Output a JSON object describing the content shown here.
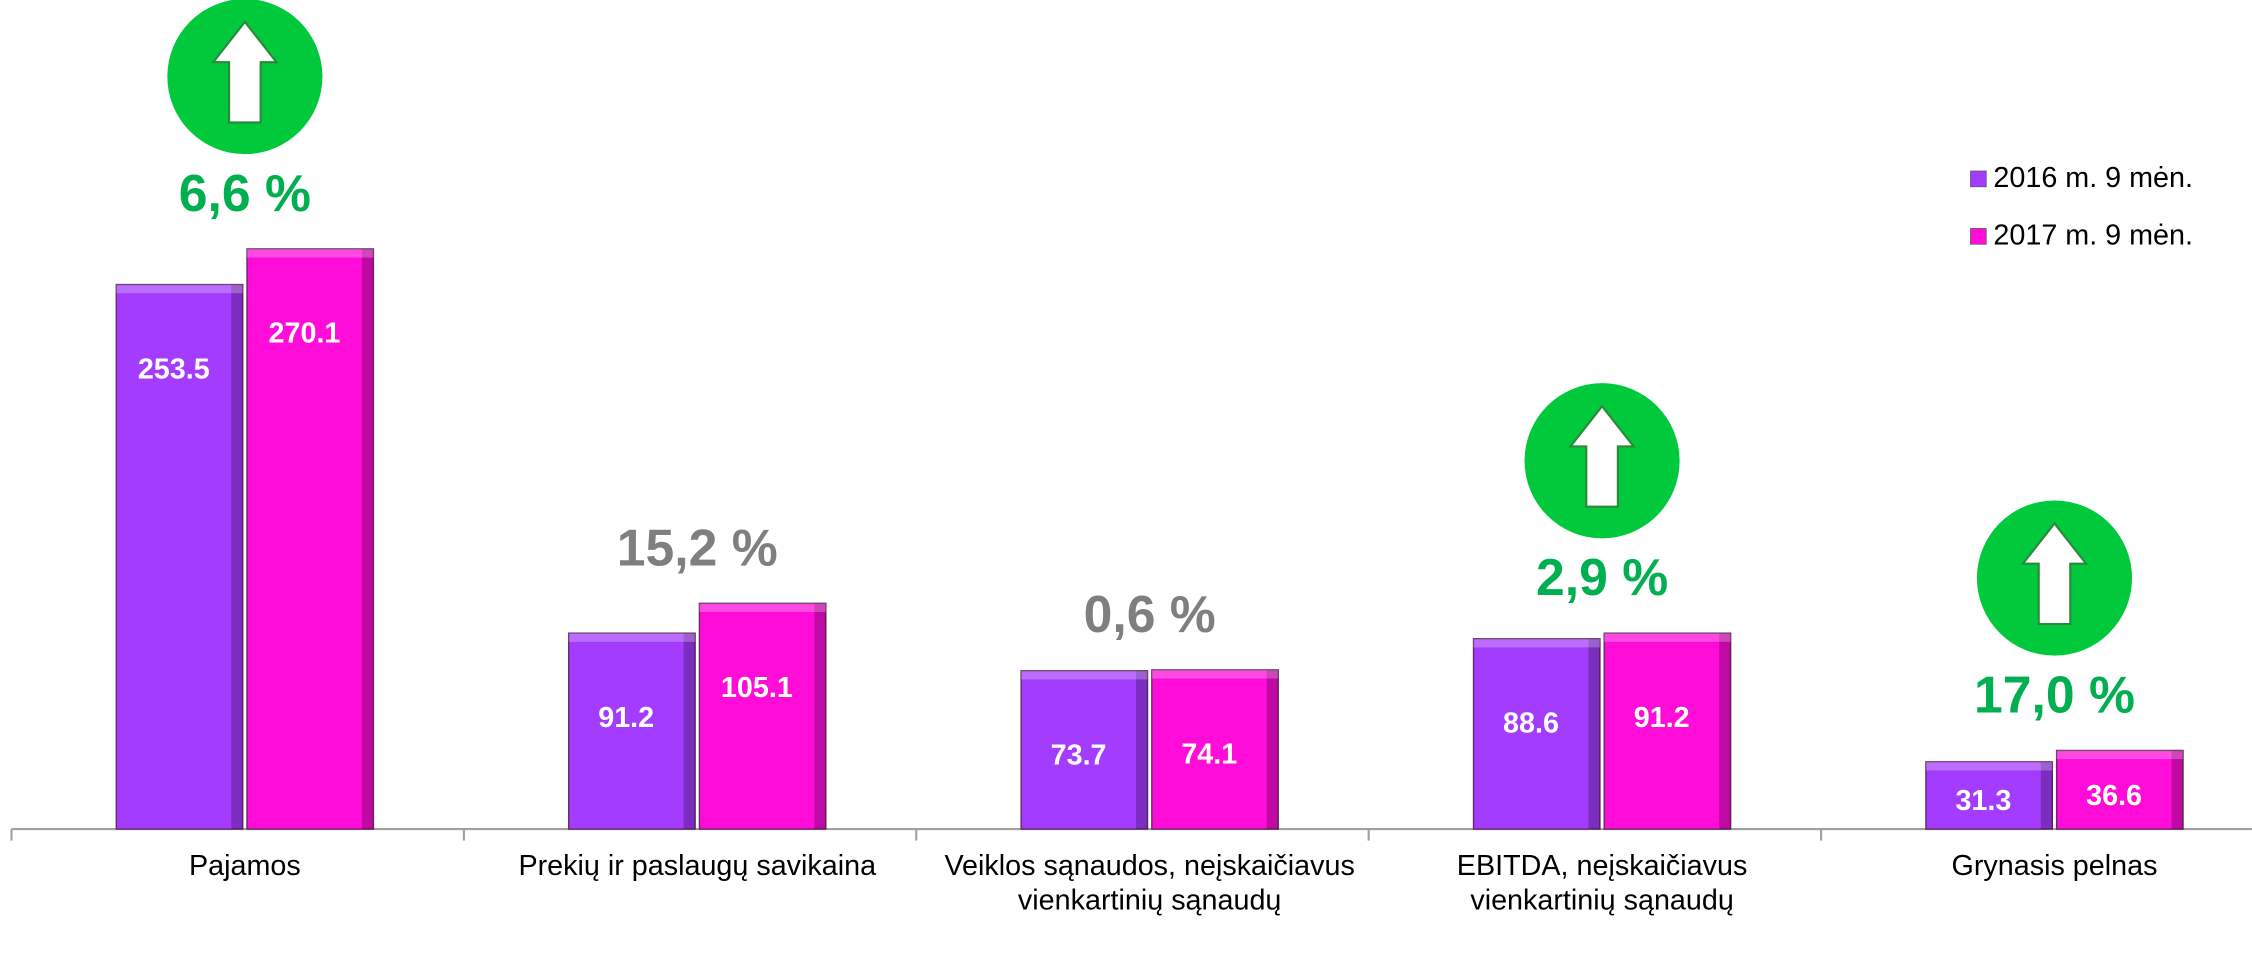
{
  "chart_data": {
    "type": "bar",
    "categories": [
      "Pajamos",
      "Prekių ir paslaugų savikaina",
      "Veiklos sąnaudos, neįskaičiavus vienkartinių sąnaudų",
      "EBITDA, neįskaičiavus vienkartinių sąnaudų",
      "Grynasis pelnas"
    ],
    "series": [
      {
        "name": "2016 m. 9 mėn.",
        "color": "#a43cff",
        "values": [
          253.5,
          91.2,
          73.7,
          88.6,
          31.3
        ]
      },
      {
        "name": "2017 m. 9 mėn.",
        "color": "#ff0cd8",
        "values": [
          270.1,
          105.1,
          74.1,
          91.2,
          36.6
        ]
      }
    ],
    "ylim": [
      0,
      386
    ],
    "change_labels": [
      "6,6 %",
      "15,2 %",
      "0,6 %",
      "2,9 %",
      "17,0 %"
    ],
    "change_colors": [
      "#00b050",
      "#7f7f7f",
      "#7f7f7f",
      "#00b050",
      "#00b050"
    ],
    "change_arrows": [
      true,
      false,
      false,
      true,
      true
    ],
    "legend": "upper right"
  }
}
